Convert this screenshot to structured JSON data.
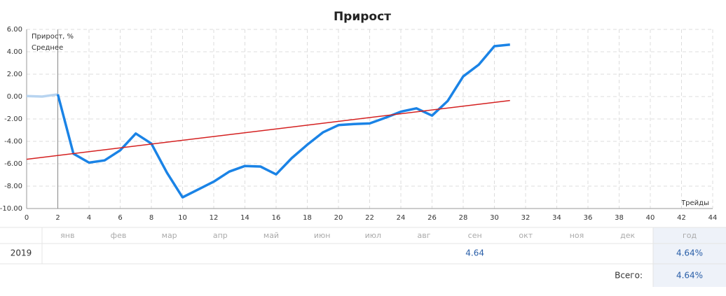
{
  "chart_data": {
    "type": "line",
    "title": "Прирост",
    "x_label": "Трейды",
    "xlim": [
      0,
      44
    ],
    "xticks": [
      0,
      2,
      4,
      6,
      8,
      10,
      12,
      14,
      16,
      18,
      20,
      22,
      24,
      26,
      28,
      30,
      32,
      34,
      36,
      38,
      40,
      42,
      44
    ],
    "ylim": [
      -10,
      6
    ],
    "yticks": [
      {
        "value": -10,
        "label": "-10.00"
      },
      {
        "value": -8,
        "label": "-8.00"
      },
      {
        "value": -6,
        "label": "-6.00"
      },
      {
        "value": -4,
        "label": "-4.00"
      },
      {
        "value": -2,
        "label": "-2.00"
      },
      {
        "value": 0,
        "label": "0.00"
      },
      {
        "value": 2,
        "label": "2.00"
      },
      {
        "value": 4,
        "label": "4.00"
      },
      {
        "value": 6,
        "label": "6.00"
      }
    ],
    "grid": true,
    "legend": "upper left",
    "marker_x": 2,
    "series": [
      {
        "name": "Прирост, %",
        "color": "#1a83e6",
        "x": [
          0,
          1,
          2,
          3,
          4,
          5,
          6,
          7,
          8,
          9,
          10,
          11,
          12,
          13,
          14,
          15,
          16,
          17,
          18,
          19,
          20,
          21,
          22,
          23,
          24,
          25,
          26,
          27,
          28,
          29,
          30,
          31
        ],
        "values": [
          0.05,
          0.0,
          0.2,
          -5.1,
          -5.9,
          -5.7,
          -4.8,
          -3.3,
          -4.2,
          -6.8,
          -9.0,
          -8.3,
          -7.6,
          -6.7,
          -6.2,
          -6.25,
          -6.95,
          -5.5,
          -4.3,
          -3.2,
          -2.55,
          -2.45,
          -2.4,
          -1.9,
          -1.35,
          -1.05,
          -1.7,
          -0.4,
          1.8,
          2.85,
          4.5,
          4.64
        ]
      },
      {
        "name": "Среднее",
        "color": "#d42020",
        "x": [
          0,
          31
        ],
        "values": [
          -5.6,
          -0.35
        ]
      }
    ]
  },
  "table": {
    "header": [
      "янв",
      "фев",
      "мар",
      "апр",
      "май",
      "июн",
      "июл",
      "авг",
      "сен",
      "окт",
      "ноя",
      "дек",
      "год"
    ],
    "rows": [
      {
        "label": "2019",
        "cells": [
          null,
          null,
          null,
          null,
          null,
          null,
          null,
          null,
          "4.64",
          null,
          null,
          null
        ],
        "year_total": "4.64%"
      }
    ],
    "total": {
      "label": "Всего:",
      "value": "4.64%"
    }
  }
}
